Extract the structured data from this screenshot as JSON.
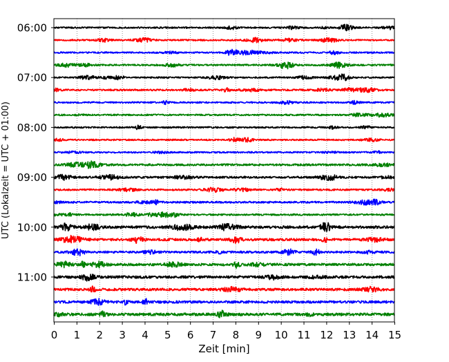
{
  "chart_data": {
    "type": "line",
    "title": "",
    "xlabel": "Zeit  [min]",
    "ylabel": "UTC (Lokalzeit = UTC + 01:00)",
    "xlim": [
      0,
      15
    ],
    "x_ticks": [
      "0",
      "1",
      "2",
      "3",
      "4",
      "5",
      "6",
      "7",
      "8",
      "9",
      "10",
      "11",
      "12",
      "13",
      "14",
      "15"
    ],
    "y_ticks": [
      "06:00",
      "07:00",
      "08:00",
      "09:00",
      "10:00",
      "11:00"
    ],
    "grid": "vertical dotted at each minute",
    "colors": [
      "#000000",
      "#ff0000",
      "#0000ff",
      "#008000"
    ],
    "trace_interval_min": 15,
    "traces": [
      {
        "start": "06:00",
        "color": "#000000",
        "amp": 1.0
      },
      {
        "start": "06:15",
        "color": "#ff0000",
        "amp": 1.0
      },
      {
        "start": "06:30",
        "color": "#0000ff",
        "amp": 1.0
      },
      {
        "start": "06:45",
        "color": "#008000",
        "amp": 1.1
      },
      {
        "start": "07:00",
        "color": "#000000",
        "amp": 1.0
      },
      {
        "start": "07:15",
        "color": "#ff0000",
        "amp": 1.1
      },
      {
        "start": "07:30",
        "color": "#0000ff",
        "amp": 1.0
      },
      {
        "start": "07:45",
        "color": "#008000",
        "amp": 1.0
      },
      {
        "start": "08:00",
        "color": "#000000",
        "amp": 1.0
      },
      {
        "start": "08:15",
        "color": "#ff0000",
        "amp": 1.0
      },
      {
        "start": "08:30",
        "color": "#0000ff",
        "amp": 1.0
      },
      {
        "start": "08:45",
        "color": "#008000",
        "amp": 1.3
      },
      {
        "start": "09:00",
        "color": "#000000",
        "amp": 1.3
      },
      {
        "start": "09:15",
        "color": "#ff0000",
        "amp": 1.1
      },
      {
        "start": "09:30",
        "color": "#0000ff",
        "amp": 1.2
      },
      {
        "start": "09:45",
        "color": "#008000",
        "amp": 1.1
      },
      {
        "start": "10:00",
        "color": "#000000",
        "amp": 1.7
      },
      {
        "start": "10:15",
        "color": "#ff0000",
        "amp": 1.6
      },
      {
        "start": "10:30",
        "color": "#0000ff",
        "amp": 1.4
      },
      {
        "start": "10:45",
        "color": "#008000",
        "amp": 1.6
      },
      {
        "start": "11:00",
        "color": "#000000",
        "amp": 1.7
      },
      {
        "start": "11:15",
        "color": "#ff0000",
        "amp": 1.6
      },
      {
        "start": "11:30",
        "color": "#0000ff",
        "amp": 1.6
      },
      {
        "start": "11:45",
        "color": "#008000",
        "amp": 1.8
      }
    ]
  }
}
